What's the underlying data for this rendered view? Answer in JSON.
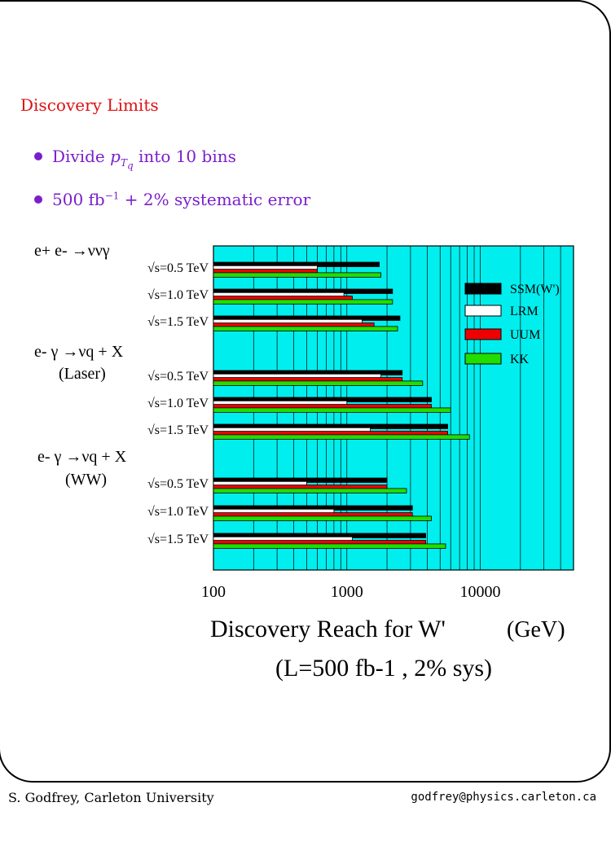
{
  "slide": {
    "title": "Discovery Limits",
    "bullets": [
      {
        "text_a": "Divide ",
        "p": "p",
        "sub": "T",
        "subsub": "q",
        "text_b": " into 10 bins"
      },
      {
        "text_a": "500 fb",
        "sup": "−1",
        "text_b": " + 2% systematic error"
      }
    ],
    "footer_left": "S. Godfrey, Carleton University",
    "footer_right": "godfrey@physics.carleton.ca"
  },
  "chart_data": {
    "type": "bar",
    "orientation": "horizontal",
    "x_scale": "log",
    "xlim": [
      100,
      50000
    ],
    "xticks": [
      100,
      1000,
      10000
    ],
    "xtick_labels": [
      "100",
      "1000",
      "10000"
    ],
    "xlabel": "Discovery Reach for W'",
    "xlabel_unit": "(GeV)",
    "subtitle": "(L=500 fb-1 , 2% sys)",
    "grid": true,
    "colors": {
      "background": "#00eeee",
      "SSM(W')": "#000000",
      "LRM": "#ffffff",
      "UUM": "#ee0000",
      "KK": "#22dd00"
    },
    "legend": [
      "SSM(W')",
      "LRM",
      "UUM",
      "KK"
    ],
    "legend_position": "top-right",
    "process_labels": [
      {
        "label": "e+ e- →ννγ",
        "sublabel": ""
      },
      {
        "label": "e- γ →νq + X",
        "sublabel": "(Laser)"
      },
      {
        "label": "e- γ →νq + X",
        "sublabel": "(WW)"
      }
    ],
    "groups": [
      {
        "process": 0,
        "energy": "√s=0.5 TeV",
        "values": {
          "SSM(W')": 1750,
          "LRM": 600,
          "UUM": 600,
          "KK": 1800
        }
      },
      {
        "process": 0,
        "energy": "√s=1.0 TeV",
        "values": {
          "SSM(W')": 2200,
          "LRM": 950,
          "UUM": 1100,
          "KK": 2200
        }
      },
      {
        "process": 0,
        "energy": "√s=1.5 TeV",
        "values": {
          "SSM(W')": 2500,
          "LRM": 1300,
          "UUM": 1600,
          "KK": 2400
        }
      },
      {
        "process": 1,
        "energy": "√s=0.5 TeV",
        "values": {
          "SSM(W')": 2600,
          "LRM": 1800,
          "UUM": 2600,
          "KK": 3700
        }
      },
      {
        "process": 1,
        "energy": "√s=1.0 TeV",
        "values": {
          "SSM(W')": 4300,
          "LRM": 1000,
          "UUM": 4300,
          "KK": 6000
        }
      },
      {
        "process": 1,
        "energy": "√s=1.5 TeV",
        "values": {
          "SSM(W')": 5700,
          "LRM": 1500,
          "UUM": 5700,
          "KK": 8300
        }
      },
      {
        "process": 2,
        "energy": "√s=0.5 TeV",
        "values": {
          "SSM(W')": 2000,
          "LRM": 500,
          "UUM": 2000,
          "KK": 2800
        }
      },
      {
        "process": 2,
        "energy": "√s=1.0 TeV",
        "values": {
          "SSM(W')": 3100,
          "LRM": 800,
          "UUM": 3100,
          "KK": 4300
        }
      },
      {
        "process": 2,
        "energy": "√s=1.5 TeV",
        "values": {
          "SSM(W')": 3900,
          "LRM": 1100,
          "UUM": 3900,
          "KK": 5500
        }
      }
    ]
  }
}
